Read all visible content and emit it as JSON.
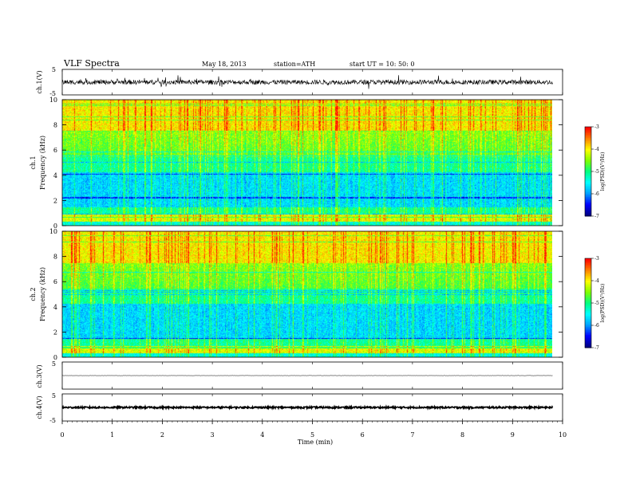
{
  "header": {
    "title": "VLF  Spectra",
    "date": "May 18, 2013",
    "station": "station=ATH",
    "start": "start  UT  =    10: 50: 0"
  },
  "colors": {
    "spectrum_scale": [
      "#000000",
      "#000080",
      "#0000ff",
      "#00a0ff",
      "#00ffff",
      "#00ff80",
      "#80ff00",
      "#ffff00",
      "#ff8000",
      "#ff0000",
      "#ff8080",
      "#ffffff"
    ]
  },
  "chart_data": [
    {
      "id": "ch1-waveform",
      "type": "line",
      "ylabel": "ch.1(V)",
      "yticks": [
        "5",
        "-5"
      ],
      "ylim": [
        -5,
        5
      ],
      "x_end_min": 9.8,
      "baseline": 0,
      "noise_amplitude": 0.9,
      "spike_amplitude": 2.5
    },
    {
      "id": "ch1-spectrogram",
      "type": "heatmap",
      "ylabel": "ch.1\nFrequency  (kHz)",
      "ylim": [
        0,
        10
      ],
      "yticks": [
        "10",
        "8",
        "6",
        "4",
        "2",
        "0"
      ],
      "x_end_min": 9.8,
      "colorbar": {
        "label": "log(PSD)(V²/Hz)",
        "ticks": [
          "-3",
          "-4",
          "-5",
          "-6",
          "-7"
        ],
        "range": [
          -7,
          -3
        ]
      }
    },
    {
      "id": "ch2-spectrogram",
      "type": "heatmap",
      "ylabel": "ch.2\nFrequency  (kHz)",
      "ylim": [
        0,
        10
      ],
      "yticks": [
        "10",
        "8",
        "6",
        "4",
        "2",
        "0"
      ],
      "x_end_min": 9.8,
      "colorbar": {
        "label": "log(PSD)(V²/Hz)",
        "ticks": [
          "-3",
          "-4",
          "-5",
          "-6",
          "-7"
        ],
        "range": [
          -7,
          -3
        ]
      }
    },
    {
      "id": "ch3-waveform",
      "type": "line",
      "ylabel": "ch.3(V)",
      "yticks": [
        "5"
      ],
      "ylim": [
        -5,
        5
      ],
      "x_end_min": 9.8,
      "baseline": 0,
      "noise_amplitude": 0.05
    },
    {
      "id": "ch4-waveform",
      "type": "line",
      "ylabel": "ch.4(V)",
      "yticks": [
        "5",
        "-5"
      ],
      "ylim": [
        -5,
        5
      ],
      "x_end_min": 9.8,
      "baseline": 0,
      "noise_amplitude": 0.3
    }
  ],
  "x_axis": {
    "xlabel": "Time  (min)",
    "range": [
      0,
      10
    ],
    "ticks": [
      "0",
      "1",
      "2",
      "3",
      "4",
      "5",
      "6",
      "7",
      "8",
      "9",
      "10"
    ]
  }
}
